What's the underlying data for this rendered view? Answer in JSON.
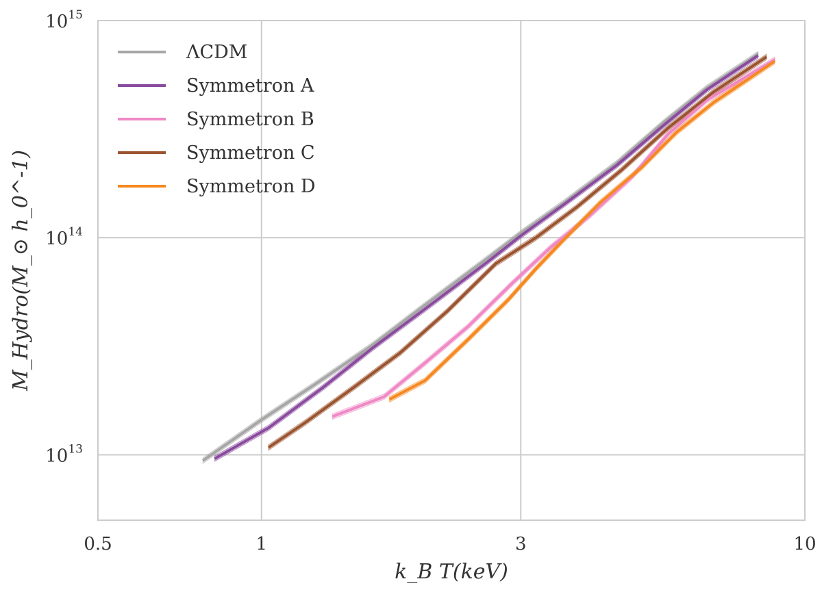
{
  "chart_data": {
    "type": "line",
    "title": "",
    "xlabel": "k_B T(keV)",
    "ylabel": "M_Hydro(M_⊙ h_0^-1)",
    "x_scale": "log",
    "y_scale": "log",
    "xlim": [
      0.5,
      10
    ],
    "ylim": [
      5000000000000.0,
      1000000000000000.0
    ],
    "grid": true,
    "legend_position": "top-left",
    "x_ticks": [
      {
        "value": 0.5,
        "label": "0.5"
      },
      {
        "value": 1,
        "label": "1"
      },
      {
        "value": 3,
        "label": "3"
      },
      {
        "value": 10,
        "label": "10"
      }
    ],
    "y_ticks": [
      {
        "value": 10000000000000.0,
        "base": "10",
        "exp": "13"
      },
      {
        "value": 100000000000000.0,
        "base": "10",
        "exp": "14"
      },
      {
        "value": 1000000000000000.0,
        "base": "10",
        "exp": "15"
      }
    ],
    "series": [
      {
        "name": "ΛCDM",
        "color": "#a6a6a6",
        "x": [
          0.78,
          1.0,
          1.25,
          1.6,
          2.0,
          2.6,
          3.0,
          3.6,
          4.5,
          5.5,
          6.6,
          8.2
        ],
        "y": [
          9400000000000.0,
          14500000000000.0,
          21000000000000.0,
          32000000000000.0,
          49000000000000.0,
          80000000000000.0,
          105000000000000.0,
          145000000000000.0,
          220000000000000.0,
          340000000000000.0,
          490000000000000.0,
          700000000000000.0
        ]
      },
      {
        "name": "Symmetron A",
        "color": "#8a4a9e",
        "x": [
          0.82,
          1.03,
          1.3,
          1.6,
          2.0,
          2.6,
          3.0,
          3.6,
          4.5,
          5.5,
          6.6,
          8.2
        ],
        "y": [
          9600000000000.0,
          13300000000000.0,
          20500000000000.0,
          31000000000000.0,
          47000000000000.0,
          77000000000000.0,
          102000000000000.0,
          142000000000000.0,
          215000000000000.0,
          330000000000000.0,
          480000000000000.0,
          690000000000000.0
        ]
      },
      {
        "name": "Symmetron B",
        "color": "#ef88c4",
        "x": [
          1.35,
          1.68,
          2.0,
          2.4,
          2.9,
          3.4,
          4.0,
          4.8,
          5.6,
          6.6,
          8.8
        ],
        "y": [
          15000000000000.0,
          18500000000000.0,
          26500000000000.0,
          39000000000000.0,
          62000000000000.0,
          90000000000000.0,
          125000000000000.0,
          190000000000000.0,
          300000000000000.0,
          430000000000000.0,
          660000000000000.0
        ]
      },
      {
        "name": "Symmetron C",
        "color": "#9b532f",
        "x": [
          1.03,
          1.2,
          1.5,
          1.8,
          2.2,
          2.7,
          3.2,
          3.8,
          4.6,
          5.6,
          6.8,
          8.5
        ],
        "y": [
          10800000000000.0,
          14000000000000.0,
          21000000000000.0,
          29500000000000.0,
          46000000000000.0,
          76000000000000.0,
          100000000000000.0,
          138000000000000.0,
          205000000000000.0,
          320000000000000.0,
          470000000000000.0,
          680000000000000.0
        ]
      },
      {
        "name": "Symmetron D",
        "color": "#f5881f",
        "x": [
          1.72,
          2.0,
          2.4,
          2.85,
          3.2,
          3.6,
          4.2,
          5.0,
          5.8,
          6.8,
          8.8
        ],
        "y": [
          18000000000000.0,
          22000000000000.0,
          34000000000000.0,
          52000000000000.0,
          72000000000000.0,
          98000000000000.0,
          145000000000000.0,
          210000000000000.0,
          305000000000000.0,
          420000000000000.0,
          650000000000000.0
        ]
      }
    ]
  }
}
